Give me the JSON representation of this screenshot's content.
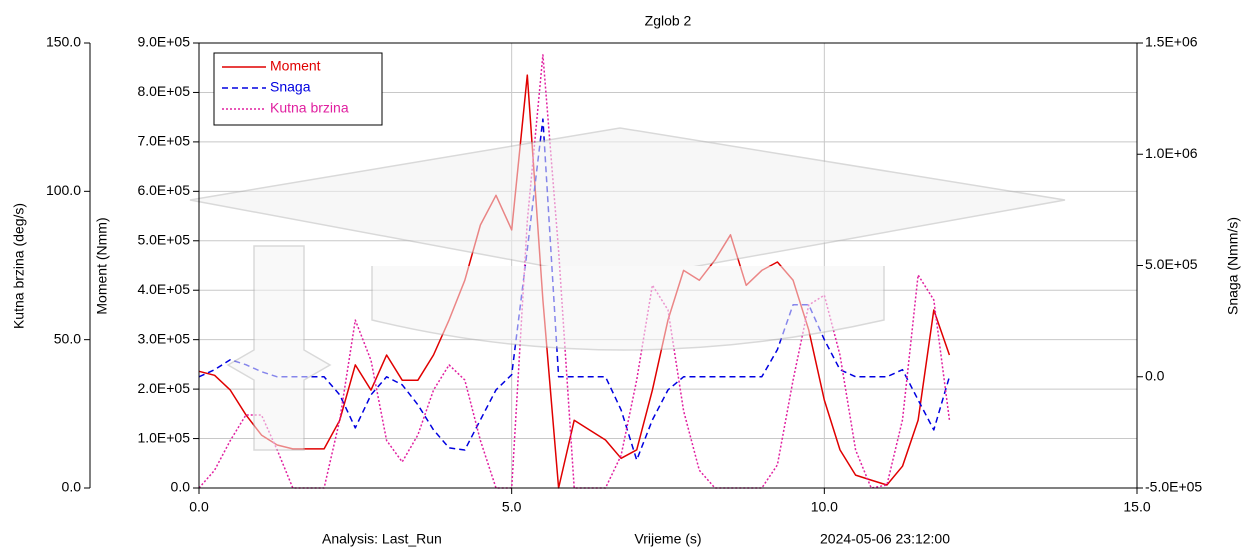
{
  "chart_data": {
    "type": "line",
    "title": "Zglob 2",
    "xlabel": "Vrijeme (s)",
    "ylabel": "Moment (Nmm)",
    "y2label": "Snaga (Nmm/s)",
    "y3label": "Kutna brzina (deg/s)",
    "footer_left": "Analysis:  Last_Run",
    "footer_right": "2024-05-06 23:12:00",
    "xlim": [
      0,
      15
    ],
    "xticks": [
      {
        "value": 0,
        "label": "0.0"
      },
      {
        "value": 5,
        "label": "5.0"
      },
      {
        "value": 10,
        "label": "10.0"
      },
      {
        "value": 15,
        "label": "15.0"
      }
    ],
    "ylim": [
      0,
      900000
    ],
    "yticks": [
      {
        "value": 0,
        "label": "0.0"
      },
      {
        "value": 100000,
        "label": "1.0E+05"
      },
      {
        "value": 200000,
        "label": "2.0E+05"
      },
      {
        "value": 300000,
        "label": "3.0E+05"
      },
      {
        "value": 400000,
        "label": "4.0E+05"
      },
      {
        "value": 500000,
        "label": "5.0E+05"
      },
      {
        "value": 600000,
        "label": "6.0E+05"
      },
      {
        "value": 700000,
        "label": "7.0E+05"
      },
      {
        "value": 800000,
        "label": "8.0E+05"
      },
      {
        "value": 900000,
        "label": "9.0E+05"
      }
    ],
    "y2lim": [
      -500000,
      1500000
    ],
    "y2ticks": [
      {
        "value": -500000,
        "label": "-5.0E+05"
      },
      {
        "value": 0,
        "label": "0.0"
      },
      {
        "value": 500000,
        "label": "5.0E+05"
      },
      {
        "value": 1000000,
        "label": "1.0E+06"
      },
      {
        "value": 1500000,
        "label": "1.5E+06"
      }
    ],
    "y3lim": [
      0,
      150
    ],
    "y3ticks": [
      {
        "value": 0,
        "label": "0.0"
      },
      {
        "value": 50,
        "label": "50.0"
      },
      {
        "value": 100,
        "label": "100.0"
      },
      {
        "value": 150,
        "label": "150.0"
      }
    ],
    "grid": true,
    "legend": "upper left",
    "x": [
      0,
      0.25,
      0.5,
      0.75,
      1,
      1.25,
      1.5,
      1.75,
      2,
      2.25,
      2.5,
      2.75,
      3,
      3.25,
      3.5,
      3.75,
      4,
      4.25,
      4.5,
      4.75,
      5,
      5.25,
      5.5,
      5.75,
      6,
      6.25,
      6.5,
      6.75,
      7,
      7.25,
      7.5,
      7.75,
      8,
      8.25,
      8.5,
      8.75,
      9,
      9.25,
      9.5,
      9.75,
      10,
      10.25,
      10.5,
      10.75,
      11,
      11.25,
      11.5,
      11.75,
      12
    ],
    "series": [
      {
        "name": "Moment",
        "color": "#e00000",
        "dash": "solid",
        "axis": "y",
        "values": [
          236000,
          228000,
          198000,
          148000,
          107000,
          87000,
          79000,
          79000,
          79000,
          137000,
          249000,
          198000,
          269000,
          218000,
          218000,
          269000,
          340000,
          420000,
          532000,
          592000,
          522000,
          835000,
          380000,
          0,
          137000,
          117000,
          97000,
          60000,
          77000,
          198000,
          340000,
          440000,
          420000,
          461000,
          512000,
          410000,
          440000,
          457000,
          420000,
          320000,
          178000,
          77000,
          26000,
          16000,
          6000,
          44000,
          137000,
          360000,
          269000
        ]
      },
      {
        "name": "Snaga",
        "color": "#0000e0",
        "dash": "dashed",
        "axis": "y2",
        "values": [
          0,
          31500,
          76600,
          54000,
          22500,
          0,
          0,
          0,
          0,
          -81000,
          -230000,
          -81000,
          0,
          -36000,
          -126000,
          -239000,
          -320000,
          -329000,
          -194000,
          -59000,
          9000,
          572000,
          1158000,
          0,
          0,
          0,
          0,
          -149000,
          -374000,
          -194000,
          -59000,
          0,
          0,
          0,
          0,
          0,
          0,
          122000,
          324000,
          324000,
          167000,
          31500,
          0,
          0,
          0,
          31500,
          -104000,
          -239000,
          0
        ]
      },
      {
        "name": "Kutna brzina",
        "color": "#e020a0",
        "dash": "dotted",
        "axis": "y3",
        "values": [
          0,
          6,
          16,
          24.6,
          24.6,
          12.8,
          0,
          0,
          0,
          22.9,
          56.6,
          43,
          16,
          8.8,
          17.9,
          33,
          41.5,
          36.4,
          16,
          0,
          0,
          90,
          146,
          80,
          0,
          0,
          0,
          11,
          36.4,
          68.4,
          60,
          26,
          6,
          0,
          0,
          0,
          0,
          7.8,
          36.4,
          61.7,
          65,
          44.8,
          12.8,
          0,
          1,
          23,
          71.8,
          63.4,
          23
        ]
      }
    ]
  }
}
